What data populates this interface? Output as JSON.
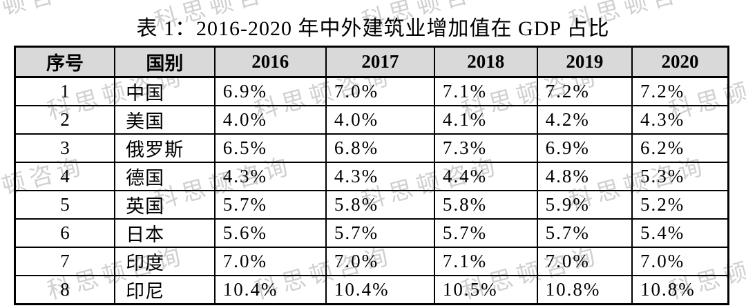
{
  "title": "表 1：2016-2020 年中外建筑业增加值在 GDP 占比",
  "watermark": {
    "text": "科思顿咨询"
  },
  "table": {
    "header": [
      "序号",
      "国别",
      "2016",
      "2017",
      "2018",
      "2019",
      "2020"
    ],
    "rows": [
      [
        "1",
        "中国",
        "6.9%",
        "7.0%",
        "7.1%",
        "7.2%",
        "7.2%"
      ],
      [
        "2",
        "美国",
        "4.0%",
        "4.0%",
        "4.1%",
        "4.2%",
        "4.3%"
      ],
      [
        "3",
        "俄罗斯",
        "6.5%",
        "6.8%",
        "7.3%",
        "6.9%",
        "6.2%"
      ],
      [
        "4",
        "德国",
        "4.3%",
        "4.3%",
        "4.4%",
        "4.8%",
        "5.3%"
      ],
      [
        "5",
        "英国",
        "5.7%",
        "5.8%",
        "5.8%",
        "5.9%",
        "5.2%"
      ],
      [
        "6",
        "日本",
        "5.6%",
        "5.7%",
        "5.7%",
        "5.7%",
        "5.4%"
      ],
      [
        "7",
        "印度",
        "7.0%",
        "7.0%",
        "7.1%",
        "7.0%",
        "7.0%"
      ],
      [
        "8",
        "印尼",
        "10.4%",
        "10.4%",
        "10.5%",
        "10.8%",
        "10.8%"
      ]
    ]
  },
  "colors": {
    "header_bg": "#d9d9d9",
    "border": "#000000",
    "watermark": "#c5c5c5",
    "background": "#ffffff"
  },
  "chart_data": {
    "type": "table",
    "title": "表 1：2016-2020 年中外建筑业增加值在 GDP 占比",
    "categories": [
      "2016",
      "2017",
      "2018",
      "2019",
      "2020"
    ],
    "unit": "%",
    "series": [
      {
        "name": "中国",
        "values": [
          6.9,
          7.0,
          7.1,
          7.2,
          7.2
        ]
      },
      {
        "name": "美国",
        "values": [
          4.0,
          4.0,
          4.1,
          4.2,
          4.3
        ]
      },
      {
        "name": "俄罗斯",
        "values": [
          6.5,
          6.8,
          7.3,
          6.9,
          6.2
        ]
      },
      {
        "name": "德国",
        "values": [
          4.3,
          4.3,
          4.4,
          4.8,
          5.3
        ]
      },
      {
        "name": "英国",
        "values": [
          5.7,
          5.8,
          5.8,
          5.9,
          5.2
        ]
      },
      {
        "name": "日本",
        "values": [
          5.6,
          5.7,
          5.7,
          5.7,
          5.4
        ]
      },
      {
        "name": "印度",
        "values": [
          7.0,
          7.0,
          7.1,
          7.0,
          7.0
        ]
      },
      {
        "name": "印尼",
        "values": [
          10.4,
          10.4,
          10.5,
          10.8,
          10.8
        ]
      }
    ]
  }
}
